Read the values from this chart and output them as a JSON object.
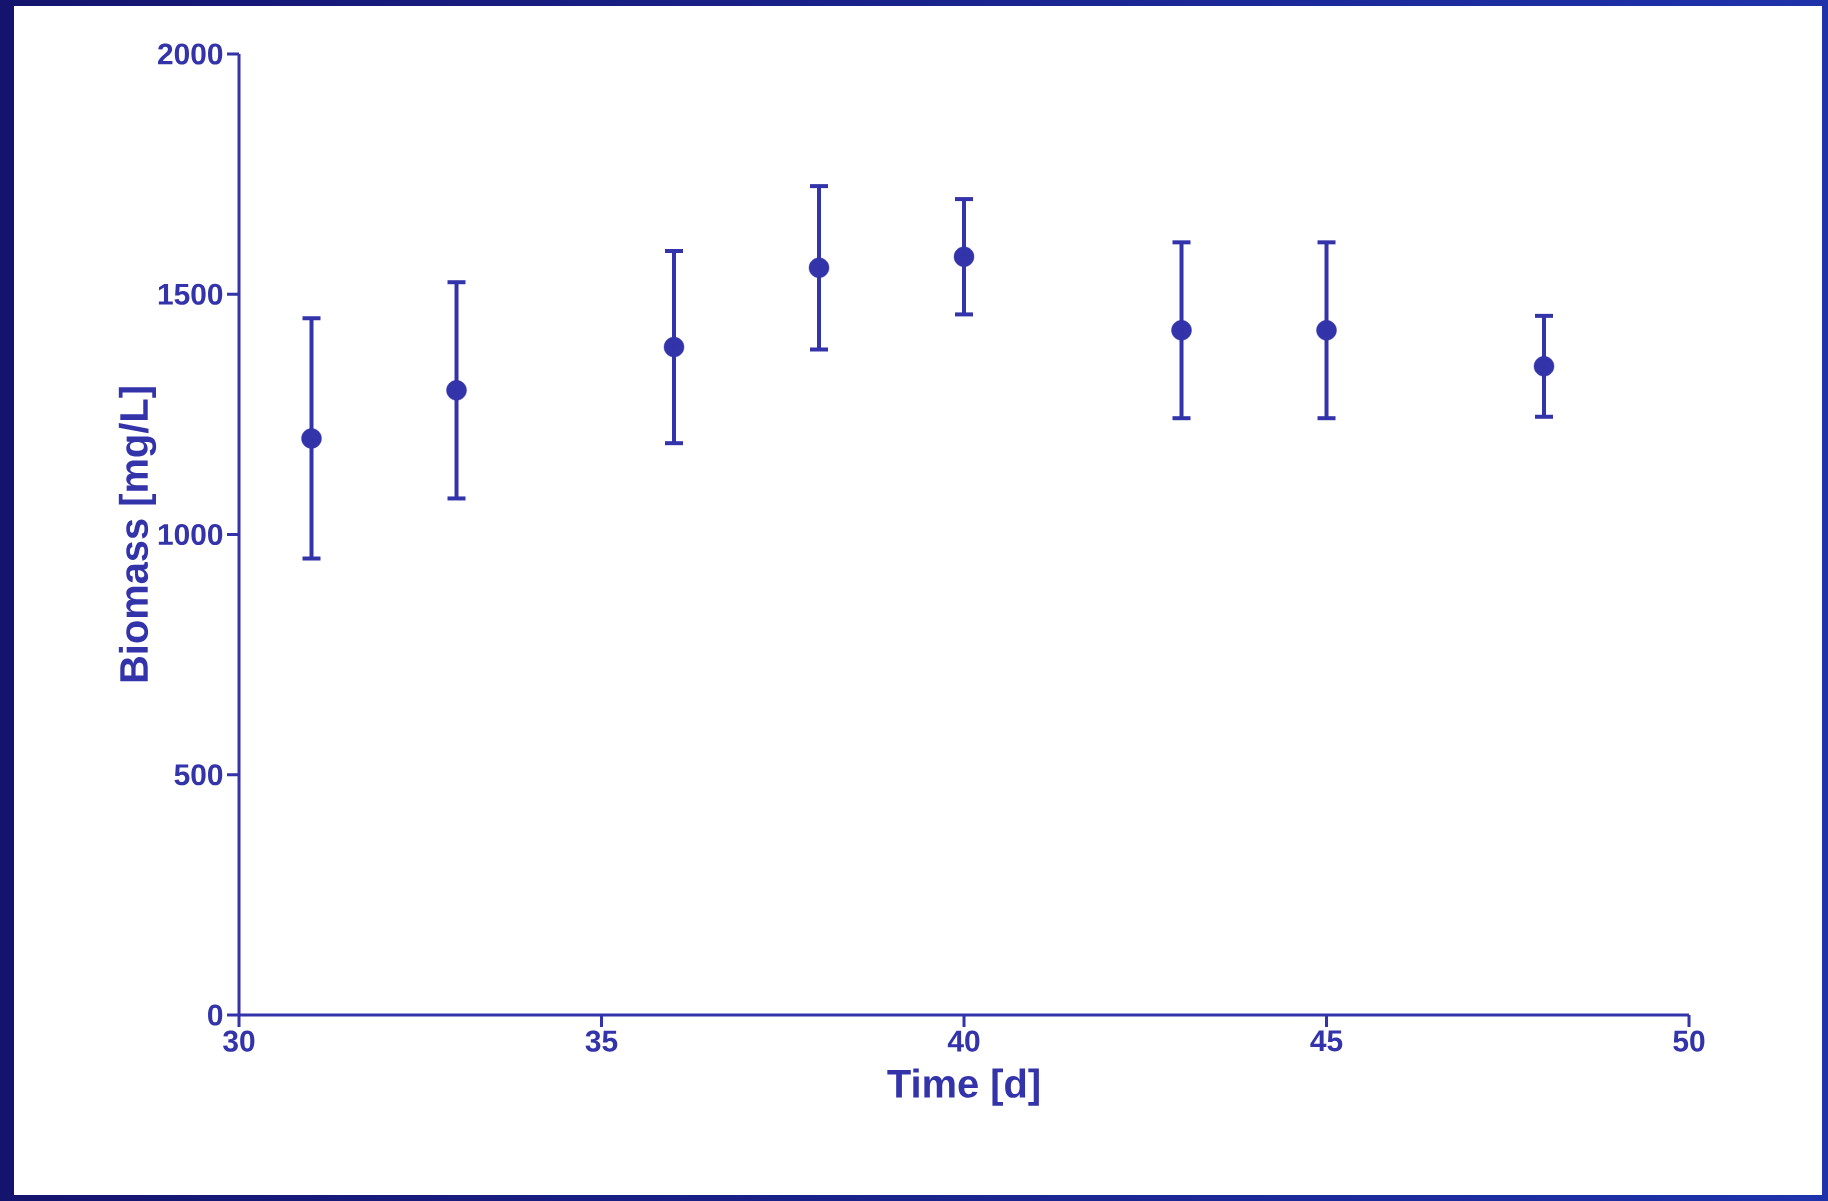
{
  "chart_data": {
    "type": "scatter",
    "xlabel": "Time [d]",
    "ylabel": "Biomass [mg/L]",
    "x": [
      31,
      33,
      36,
      38,
      40,
      43,
      45,
      48
    ],
    "values": [
      1200,
      1300,
      1390,
      1555,
      1578,
      1425,
      1425,
      1350
    ],
    "errors": [
      250,
      225,
      200,
      170,
      120,
      183,
      183,
      105
    ],
    "color": "#3333aa",
    "marker": "circle",
    "xlim": [
      30,
      50
    ],
    "xticks": [
      30,
      35,
      40,
      45,
      50
    ],
    "ylim": [
      0,
      2000
    ],
    "yticks": [
      0,
      500,
      1000,
      1500,
      2000
    ]
  }
}
